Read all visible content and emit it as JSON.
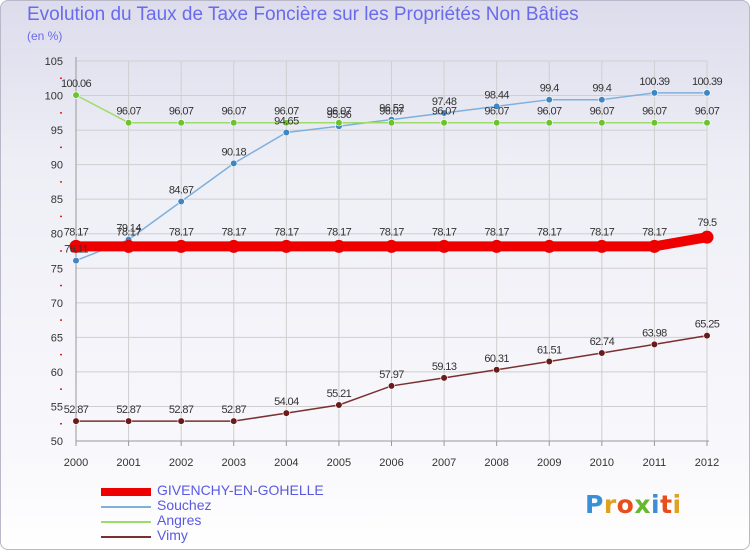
{
  "title": "Evolution du Taux de Taxe Foncière sur les Propriétés Non Bâties",
  "unit_label": "(en %)",
  "logo": {
    "text": "Proxiti",
    "letter_colors": [
      "#3a8fd6",
      "#e0a020",
      "#e84e1b",
      "#66b82e",
      "#3a8fd6",
      "#e84e1b",
      "#e0a020"
    ]
  },
  "chart_data": {
    "type": "line",
    "title": "Evolution du Taux de Taxe Foncière sur les Propriétés Non Bâties",
    "ylabel": "(en %)",
    "xlabel": "",
    "x": [
      "2000",
      "2001",
      "2002",
      "2003",
      "2004",
      "2005",
      "2006",
      "2007",
      "2008",
      "2009",
      "2010",
      "2011",
      "2012"
    ],
    "ylim": [
      50,
      105
    ],
    "yticks": [
      "50",
      "55",
      "60",
      "65",
      "70",
      "75",
      "80",
      "85",
      "90",
      "95",
      "100",
      "105"
    ],
    "grid": true,
    "legend_position": "bottom-left",
    "series": [
      {
        "name": "GIVENCHY-EN-GOHELLE",
        "color": "#ee0000",
        "marker_color": "#ee0000",
        "thick": true,
        "values": [
          78.17,
          78.17,
          78.17,
          78.17,
          78.17,
          78.17,
          78.17,
          78.17,
          78.17,
          78.17,
          78.17,
          78.17,
          79.5
        ],
        "labels": [
          "78.17",
          "78.17",
          "78.17",
          "78.17",
          "78.17",
          "78.17",
          "78.17",
          "78.17",
          "78.17",
          "78.17",
          "78.17",
          "78.17",
          "79.5"
        ]
      },
      {
        "name": "Souchez",
        "color": "#7fb0dc",
        "marker_color": "#3f86c4",
        "thick": false,
        "values": [
          76.11,
          79.14,
          84.67,
          90.18,
          94.65,
          95.56,
          96.52,
          97.48,
          98.44,
          99.4,
          99.4,
          100.39,
          100.39
        ],
        "labels": [
          "76.11",
          "79.14",
          "84.67",
          "90.18",
          "94.65",
          "95.56",
          "96.52",
          "97.48",
          "98.44",
          "99.4",
          "99.4",
          "100.39",
          "100.39"
        ]
      },
      {
        "name": "Angres",
        "color": "#9ddc6a",
        "marker_color": "#6cc42c",
        "thick": false,
        "values": [
          100.06,
          96.07,
          96.07,
          96.07,
          96.07,
          96.07,
          96.07,
          96.07,
          96.07,
          96.07,
          96.07,
          96.07,
          96.07
        ],
        "labels": [
          "100.06",
          "96.07",
          "96.07",
          "96.07",
          "96.07",
          "96.07",
          "96.07",
          "96.07",
          "96.07",
          "96.07",
          "96.07",
          "96.07",
          "96.07"
        ]
      },
      {
        "name": "Vimy",
        "color": "#7a3030",
        "marker_color": "#6a1a1a",
        "thick": false,
        "values": [
          52.87,
          52.87,
          52.87,
          52.87,
          54.04,
          55.21,
          57.97,
          59.13,
          60.31,
          61.51,
          62.74,
          63.98,
          65.25
        ],
        "labels": [
          "52.87",
          "52.87",
          "52.87",
          "52.87",
          "54.04",
          "55.21",
          "57.97",
          "59.13",
          "60.31",
          "61.51",
          "62.74",
          "63.98",
          "65.25"
        ]
      }
    ]
  }
}
